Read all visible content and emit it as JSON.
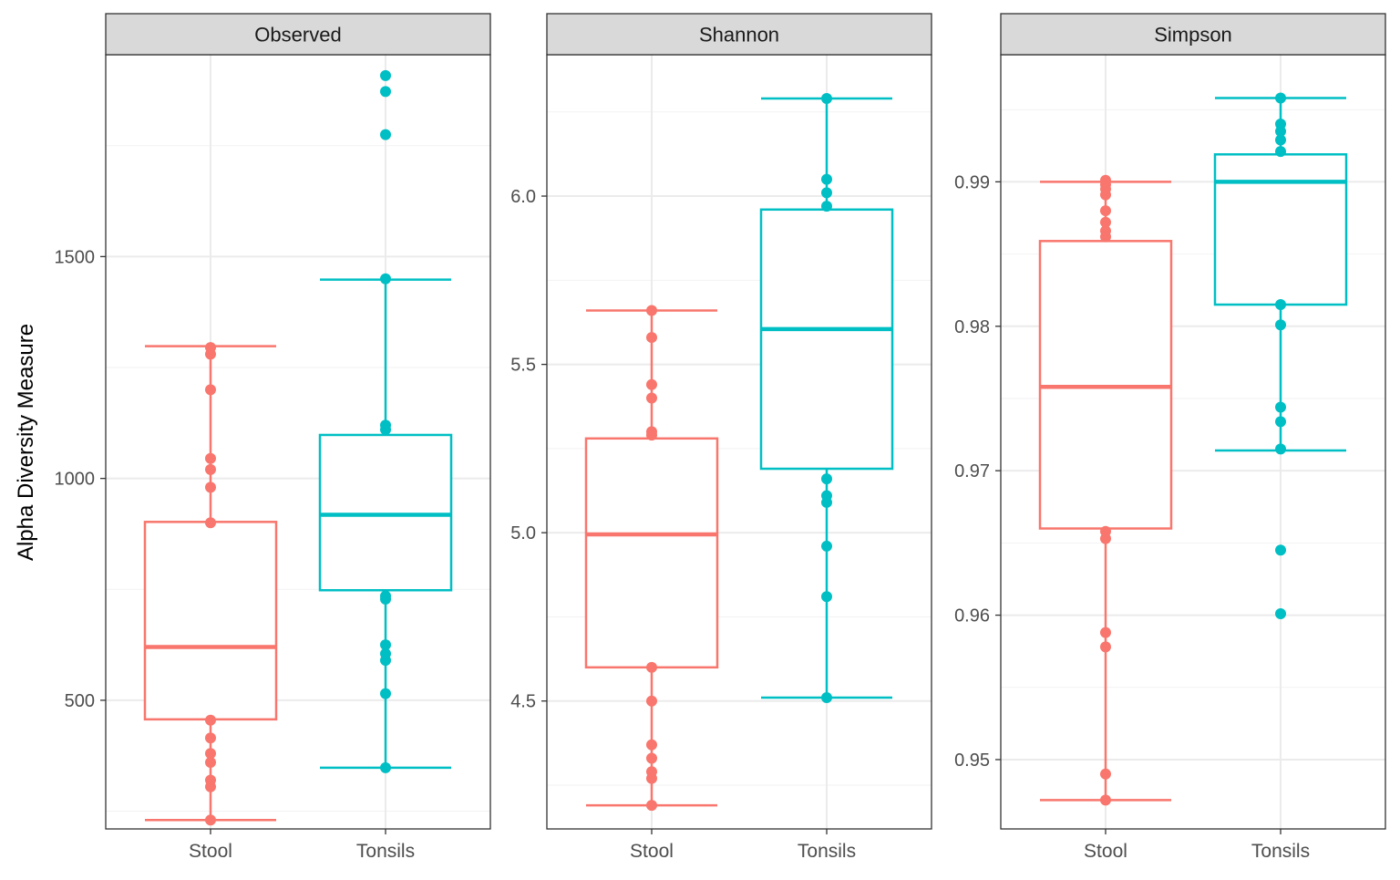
{
  "chart_data": {
    "type": "boxplot",
    "ylabel": "Alpha Diversity Measure",
    "categories": [
      "Stool",
      "Tonsils"
    ],
    "colors": {
      "Stool": "#F8766D",
      "Tonsils": "#00BFC4"
    },
    "panels": [
      {
        "title": "Observed",
        "ylim": [
          210,
          1955
        ],
        "yticks": [
          500,
          1000,
          1500
        ],
        "yticklabels": [
          "500",
          "1000",
          "1500"
        ],
        "boxes": [
          {
            "group": "Stool",
            "min": 230,
            "q1": 457,
            "median": 620,
            "q3": 902,
            "max": 1298,
            "points": [
              230,
              305,
              320,
              360,
              380,
              415,
              455,
              900,
              980,
              1020,
              1045,
              1200,
              1280,
              1295
            ]
          },
          {
            "group": "Tonsils",
            "min": 348,
            "q1": 748,
            "median": 918,
            "q3": 1098,
            "max": 1448,
            "points": [
              348,
              515,
              590,
              605,
              625,
              728,
              735,
              1110,
              1120,
              1450,
              1775,
              1872,
              1908
            ]
          }
        ]
      },
      {
        "title": "Shannon",
        "ylim": [
          4.12,
          6.42
        ],
        "yticks": [
          4.5,
          5.0,
          5.5,
          6.0
        ],
        "yticklabels": [
          "4.5",
          "5.0",
          "5.5",
          "6.0"
        ],
        "boxes": [
          {
            "group": "Stool",
            "min": 4.19,
            "q1": 4.6,
            "median": 4.995,
            "q3": 5.28,
            "max": 5.66,
            "points": [
              4.19,
              4.27,
              4.29,
              4.33,
              4.37,
              4.5,
              4.6,
              5.29,
              5.3,
              5.4,
              5.44,
              5.58,
              5.66
            ]
          },
          {
            "group": "Tonsils",
            "min": 4.51,
            "q1": 5.19,
            "median": 5.605,
            "q3": 5.96,
            "max": 6.29,
            "points": [
              4.51,
              4.81,
              4.96,
              5.09,
              5.11,
              5.16,
              5.97,
              6.01,
              6.05,
              6.29
            ]
          }
        ]
      },
      {
        "title": "Simpson",
        "ylim": [
          0.9452,
          0.9988
        ],
        "yticks": [
          0.95,
          0.96,
          0.97,
          0.98,
          0.99
        ],
        "yticklabels": [
          "0.95",
          "0.96",
          "0.97",
          "0.98",
          "0.99"
        ],
        "boxes": [
          {
            "group": "Stool",
            "min": 0.9472,
            "q1": 0.966,
            "median": 0.9758,
            "q3": 0.9859,
            "max": 0.99,
            "points": [
              0.9472,
              0.949,
              0.9578,
              0.9588,
              0.9653,
              0.9658,
              0.9862,
              0.9866,
              0.9872,
              0.988,
              0.9891,
              0.9895,
              0.9898,
              0.9901
            ]
          },
          {
            "group": "Tonsils",
            "min": 0.9714,
            "q1": 0.9815,
            "median": 0.99,
            "q3": 0.9919,
            "max": 0.9958,
            "points": [
              0.9601,
              0.9645,
              0.9715,
              0.9734,
              0.9744,
              0.9801,
              0.9815,
              0.9921,
              0.9929,
              0.9935,
              0.994,
              0.9958
            ]
          }
        ]
      }
    ]
  }
}
